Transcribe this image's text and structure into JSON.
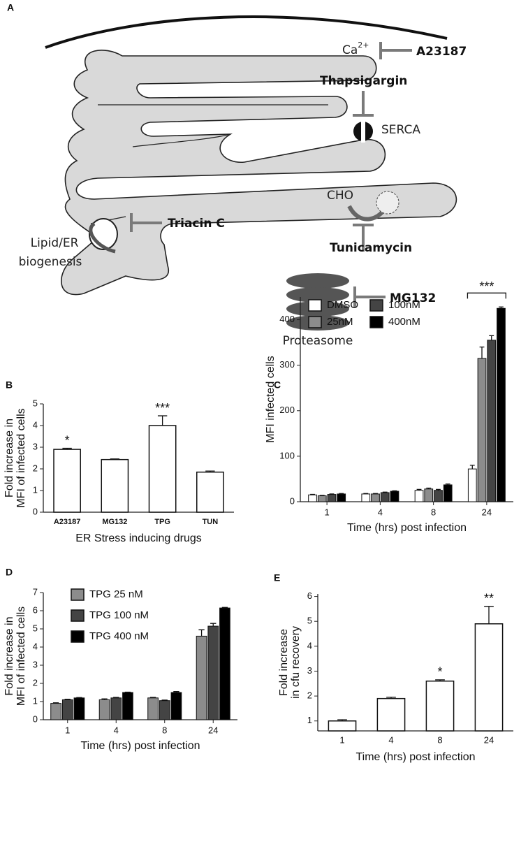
{
  "diagram": {
    "panel": "A",
    "ca": "Ca",
    "ca_charge": "2+",
    "a23187": "A23187",
    "thapsigargin": "Thapsigargin",
    "serca": "SERCA",
    "cho": "CHO",
    "tunicamycin": "Tunicamycin",
    "triacin": "Triacin C",
    "lipid_1": "Lipid/ER",
    "lipid_2": "biogenesis",
    "mg132": "MG132",
    "proteasome": "Proteasome"
  },
  "chart_data": [
    {
      "type": "bar",
      "panel": "B",
      "categories": [
        "A23187",
        "MG132",
        "TPG",
        "TUN"
      ],
      "values": [
        2.9,
        2.43,
        4.0,
        1.85
      ],
      "errors": [
        0.05,
        0.03,
        0.45,
        0.05
      ],
      "color": "#ffffff",
      "significance": [
        "*",
        null,
        "***",
        null
      ],
      "ylim": [
        0,
        5
      ],
      "yticks": [
        0,
        1,
        2,
        3,
        4,
        5
      ],
      "ylabel": [
        "Fold increase in",
        "MFI of infected cells"
      ],
      "xlabel": "ER Stress inducing drugs"
    },
    {
      "type": "grouped_bar",
      "panel": "C",
      "categories": [
        "1",
        "4",
        "8",
        "24"
      ],
      "series": [
        {
          "name": "DMSO",
          "color": "#ffffff",
          "values": [
            15,
            17,
            25,
            72
          ],
          "errors": [
            1,
            1,
            2,
            8
          ]
        },
        {
          "name": "25nM",
          "color": "#8c8c8c",
          "values": [
            13,
            17,
            28,
            315
          ],
          "errors": [
            1,
            1,
            2,
            25
          ]
        },
        {
          "name": "100nM",
          "color": "#444444",
          "values": [
            16,
            20,
            25,
            355
          ],
          "errors": [
            1,
            1,
            2,
            10
          ]
        },
        {
          "name": "400nM",
          "color": "#000000",
          "values": [
            17,
            23,
            37,
            425
          ],
          "errors": [
            1,
            1,
            2,
            3
          ]
        }
      ],
      "significance": [
        null,
        null,
        null,
        "***"
      ],
      "ylim": [
        0,
        450
      ],
      "yticks": [
        0,
        100,
        200,
        300,
        400
      ],
      "ylabel": [
        "MFI infected cells"
      ],
      "xlabel": "Time (hrs) post infection",
      "legend": "upper left"
    },
    {
      "type": "grouped_bar",
      "panel": "D",
      "categories": [
        "1",
        "4",
        "8",
        "24"
      ],
      "series": [
        {
          "name": "TPG 25 nM",
          "color": "#8c8c8c",
          "values": [
            0.9,
            1.1,
            1.2,
            4.6
          ],
          "errors": [
            0.03,
            0.05,
            0.03,
            0.35
          ]
        },
        {
          "name": "TPG 100 nM",
          "color": "#444444",
          "values": [
            1.1,
            1.2,
            1.05,
            5.15
          ],
          "errors": [
            0.03,
            0.03,
            0.03,
            0.15
          ]
        },
        {
          "name": "TPG 400 nM",
          "color": "#000000",
          "values": [
            1.2,
            1.5,
            1.5,
            6.15
          ],
          "errors": [
            0.02,
            0.02,
            0.05,
            0.03
          ]
        }
      ],
      "ylim": [
        0,
        7
      ],
      "yticks": [
        0,
        1,
        2,
        3,
        4,
        5,
        6,
        7
      ],
      "ylabel": [
        "Fold increase in",
        "MFI of infected cells"
      ],
      "xlabel": "Time (hrs) post infection",
      "legend": "upper left"
    },
    {
      "type": "bar",
      "panel": "E",
      "categories": [
        "1",
        "4",
        "8",
        "24"
      ],
      "values": [
        1.0,
        1.9,
        2.6,
        4.9
      ],
      "errors": [
        0.05,
        0.05,
        0.05,
        0.7
      ],
      "color": "#ffffff",
      "significance": [
        null,
        null,
        "*",
        "**"
      ],
      "ylim": [
        0.6,
        6.1
      ],
      "yticks": [
        1,
        2,
        3,
        4,
        5,
        6
      ],
      "ylabel": [
        "Fold increase",
        "in cfu recovery"
      ],
      "xlabel": "Time (hrs) post infection"
    }
  ]
}
